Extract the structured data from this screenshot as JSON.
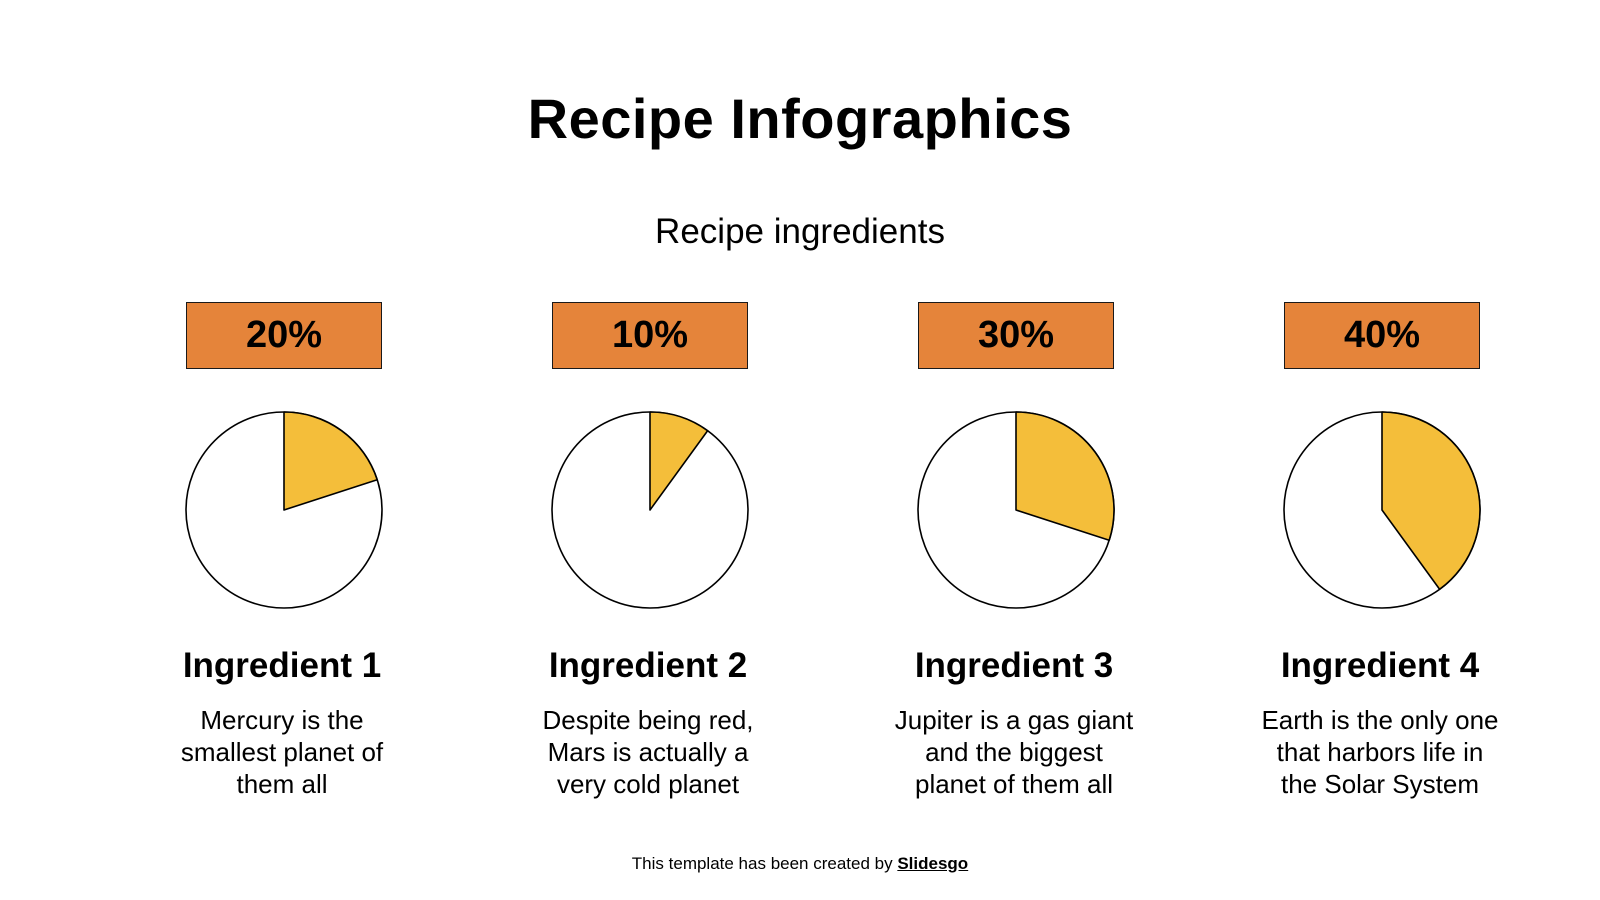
{
  "slide": {
    "title": "Recipe Infographics",
    "subtitle": "Recipe ingredients",
    "colors": {
      "box": "#E5843A",
      "slice": "#F4BE3A",
      "outline": "#000000",
      "background": "#FFFFFF"
    },
    "ingredients": [
      {
        "percent_label": "20%",
        "name": "Ingredient 1",
        "description": "Mercury is the\nsmallest planet of\nthem all"
      },
      {
        "percent_label": "10%",
        "name": "Ingredient 2",
        "description": "Despite being red,\nMars is actually a\nvery cold planet"
      },
      {
        "percent_label": "30%",
        "name": "Ingredient 3",
        "description": "Jupiter is a gas giant\nand the biggest\nplanet of them all"
      },
      {
        "percent_label": "40%",
        "name": "Ingredient 4",
        "description": "Earth is the only one\nthat harbors life in\nthe Solar System"
      }
    ],
    "footer": {
      "text": "This template has been created by ",
      "link": "Slidesgo"
    }
  },
  "chart_data": {
    "type": "pie",
    "title": "Recipe ingredients",
    "categories": [
      "Ingredient 1",
      "Ingredient 2",
      "Ingredient 3",
      "Ingredient 4"
    ],
    "values": [
      20,
      10,
      30,
      40
    ],
    "unit": "%",
    "note": "Each ingredient rendered as its own single-slice pie (highlighted slice vs remainder of 100%)"
  }
}
